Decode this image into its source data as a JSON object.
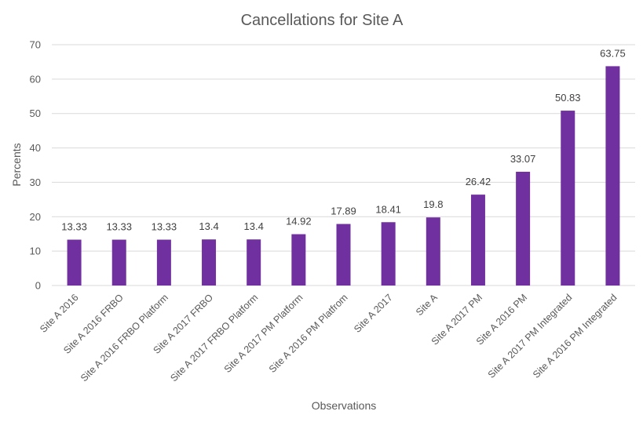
{
  "chart_data": {
    "type": "bar",
    "title": "Cancellations for Site A",
    "xlabel": "Observations",
    "ylabel": "Percents",
    "ylim": [
      0,
      70
    ],
    "yticks": [
      0,
      10,
      20,
      30,
      40,
      50,
      60,
      70
    ],
    "grid": true,
    "legend": "none",
    "bar_color": "#7030a0",
    "categories": [
      "Site A 2016",
      "Site A 2016 FRBO",
      "Site A 2016 FRBO Platform",
      "Site A 2017 FRBO",
      "Site A 2017 FRBO Platform",
      "Site A 2017 PM Platform",
      "Site A 2016 PM Platfrom",
      "Site A 2017",
      "Site A",
      "Site A 2017 PM",
      "Site A 2016 PM",
      "Site A 2017 PM Integrated",
      "Site A 2016 PM Integrated"
    ],
    "values": [
      13.33,
      13.33,
      13.33,
      13.4,
      13.4,
      14.92,
      17.89,
      18.41,
      19.8,
      26.42,
      33.07,
      50.83,
      63.75
    ],
    "data_labels": [
      "13.33",
      "13.33",
      "13.33",
      "13.4",
      "13.4",
      "14.92",
      "17.89",
      "18.41",
      "19.8",
      "26.42",
      "33.07",
      "50.83",
      "63.75"
    ]
  }
}
